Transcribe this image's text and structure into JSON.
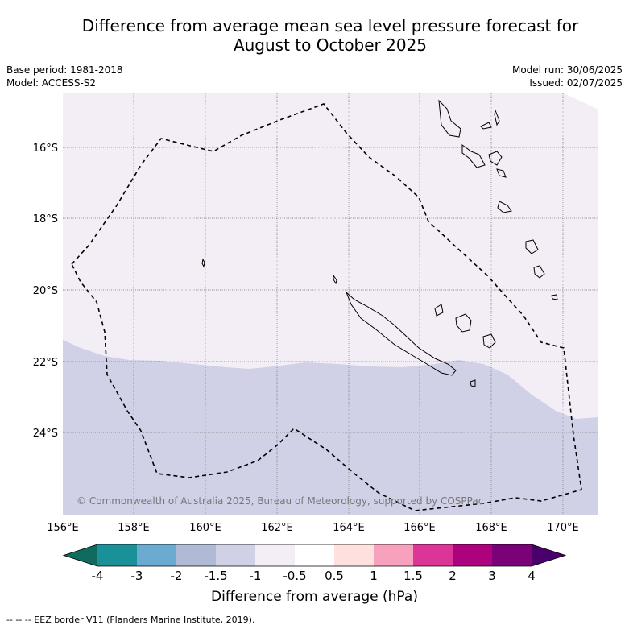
{
  "title_line1": "Difference from average mean sea level pressure forecast for",
  "title_line2": "August to October 2025",
  "meta_left": {
    "base_period": "Base period: 1981-2018",
    "model": "Model: ACCESS-S2"
  },
  "meta_right": {
    "model_run": "Model run: 30/06/2025",
    "issued": "Issued: 02/07/2025"
  },
  "copyright": "© Commonwealth of Australia 2025, Bureau of Meteorology, supported by COSPPac",
  "lon_ticks": [
    "156°E",
    "158°E",
    "160°E",
    "162°E",
    "164°E",
    "166°E",
    "168°E",
    "170°E"
  ],
  "lat_ticks": [
    "16°S",
    "18°S",
    "20°S",
    "22°S",
    "24°S"
  ],
  "colorbar": {
    "labels": [
      "-4",
      "-3",
      "-2",
      "-1.5",
      "-1",
      "-0.5",
      "0.5",
      "1",
      "1.5",
      "2",
      "3",
      "4"
    ],
    "colors": [
      "#0e6b5e",
      "#1a9199",
      "#6aabcf",
      "#b0bad5",
      "#d0d1e6",
      "#f3edf6",
      "#ffffff",
      "#fee0df",
      "#f8a1bd",
      "#dd3497",
      "#ae017e",
      "#7a0177",
      "#49006a"
    ],
    "title": "Difference from average (hPa)"
  },
  "field_colors": {
    "upper": "#f3edf6",
    "lower": "#d0d1e6"
  },
  "footer": "--  --  -- EEZ border V11 (Flanders Marine Institute, 2019)."
}
